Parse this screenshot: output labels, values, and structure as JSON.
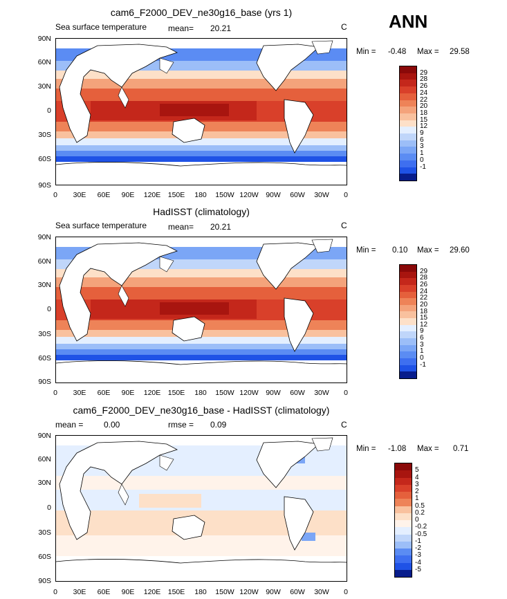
{
  "season": "ANN",
  "colors": {
    "warm": [
      "#fde0c8",
      "#f9c19e",
      "#f4a37b",
      "#ee8358",
      "#e5603c",
      "#d9402a",
      "#c4271b",
      "#a8150f",
      "#8a0909"
    ],
    "cool": [
      "#081d8c",
      "#0d36c8",
      "#1f52e6",
      "#3e6ff0",
      "#5b8cf3",
      "#7ba6f6",
      "#9cbef8",
      "#c0d6fa",
      "#e4efff"
    ],
    "land": "#ffffff",
    "coast": "#000000"
  },
  "panels": [
    {
      "title": "cam6_F2000_DEV_ne30g16_base (yrs 1)",
      "left_label": "Sea surface temperature",
      "mean_label": "mean=",
      "mean_value": "20.21",
      "units": "C",
      "min_label": "Min =",
      "min_value": "-0.48",
      "max_label": "Max =",
      "max_value": "29.58",
      "levels": [
        "29",
        "28",
        "26",
        "24",
        "22",
        "20",
        "18",
        "15",
        "12",
        "9",
        "6",
        "3",
        "1",
        "0",
        "-1"
      ],
      "colorbar": [
        "#8a0909",
        "#a8150f",
        "#c4271b",
        "#d9402a",
        "#e5603c",
        "#ee8358",
        "#f4a37b",
        "#f9c19e",
        "#fde0c8",
        "#e4efff",
        "#c0d6fa",
        "#9cbef8",
        "#7ba6f6",
        "#5b8cf3",
        "#3e6ff0",
        "#1f52e6",
        "#081d8c"
      ]
    },
    {
      "title": "HadISST (climatology)",
      "left_label": "Sea surface temperature",
      "mean_label": "mean=",
      "mean_value": "20.21",
      "units": "C",
      "min_label": "Min =",
      "min_value": "0.10",
      "max_label": "Max =",
      "max_value": "29.60",
      "levels": [
        "29",
        "28",
        "26",
        "24",
        "22",
        "20",
        "18",
        "15",
        "12",
        "9",
        "6",
        "3",
        "1",
        "0",
        "-1"
      ],
      "colorbar": [
        "#8a0909",
        "#a8150f",
        "#c4271b",
        "#d9402a",
        "#e5603c",
        "#ee8358",
        "#f4a37b",
        "#f9c19e",
        "#fde0c8",
        "#e4efff",
        "#c0d6fa",
        "#9cbef8",
        "#7ba6f6",
        "#5b8cf3",
        "#3e6ff0",
        "#1f52e6",
        "#081d8c"
      ]
    },
    {
      "title": "cam6_F2000_DEV_ne30g16_base - HadISST (climatology)",
      "left_label": "mean =",
      "left_value": "0.00",
      "rmse_label": "rmse =",
      "rmse_value": "0.09",
      "units": "C",
      "min_label": "Min =",
      "min_value": "-1.08",
      "max_label": "Max =",
      "max_value": "0.71",
      "levels": [
        "5",
        "4",
        "3",
        "2",
        "1",
        "0.5",
        "0.2",
        "0",
        "-0.2",
        "-0.5",
        "-1",
        "-2",
        "-3",
        "-4",
        "-5"
      ],
      "colorbar": [
        "#8a0909",
        "#a8150f",
        "#c4271b",
        "#d9402a",
        "#e5603c",
        "#ee8358",
        "#f9c19e",
        "#fde0c8",
        "#fff3ea",
        "#e4efff",
        "#c0d6fa",
        "#9cbef8",
        "#5b8cf3",
        "#3e6ff0",
        "#1f52e6",
        "#081d8c"
      ]
    }
  ],
  "lat_labels": [
    "90N",
    "60N",
    "30N",
    "0",
    "30S",
    "60S",
    "90S"
  ],
  "lon_labels": [
    "0",
    "30E",
    "60E",
    "90E",
    "120E",
    "150E",
    "180",
    "150W",
    "120W",
    "90W",
    "60W",
    "30W",
    "0"
  ]
}
